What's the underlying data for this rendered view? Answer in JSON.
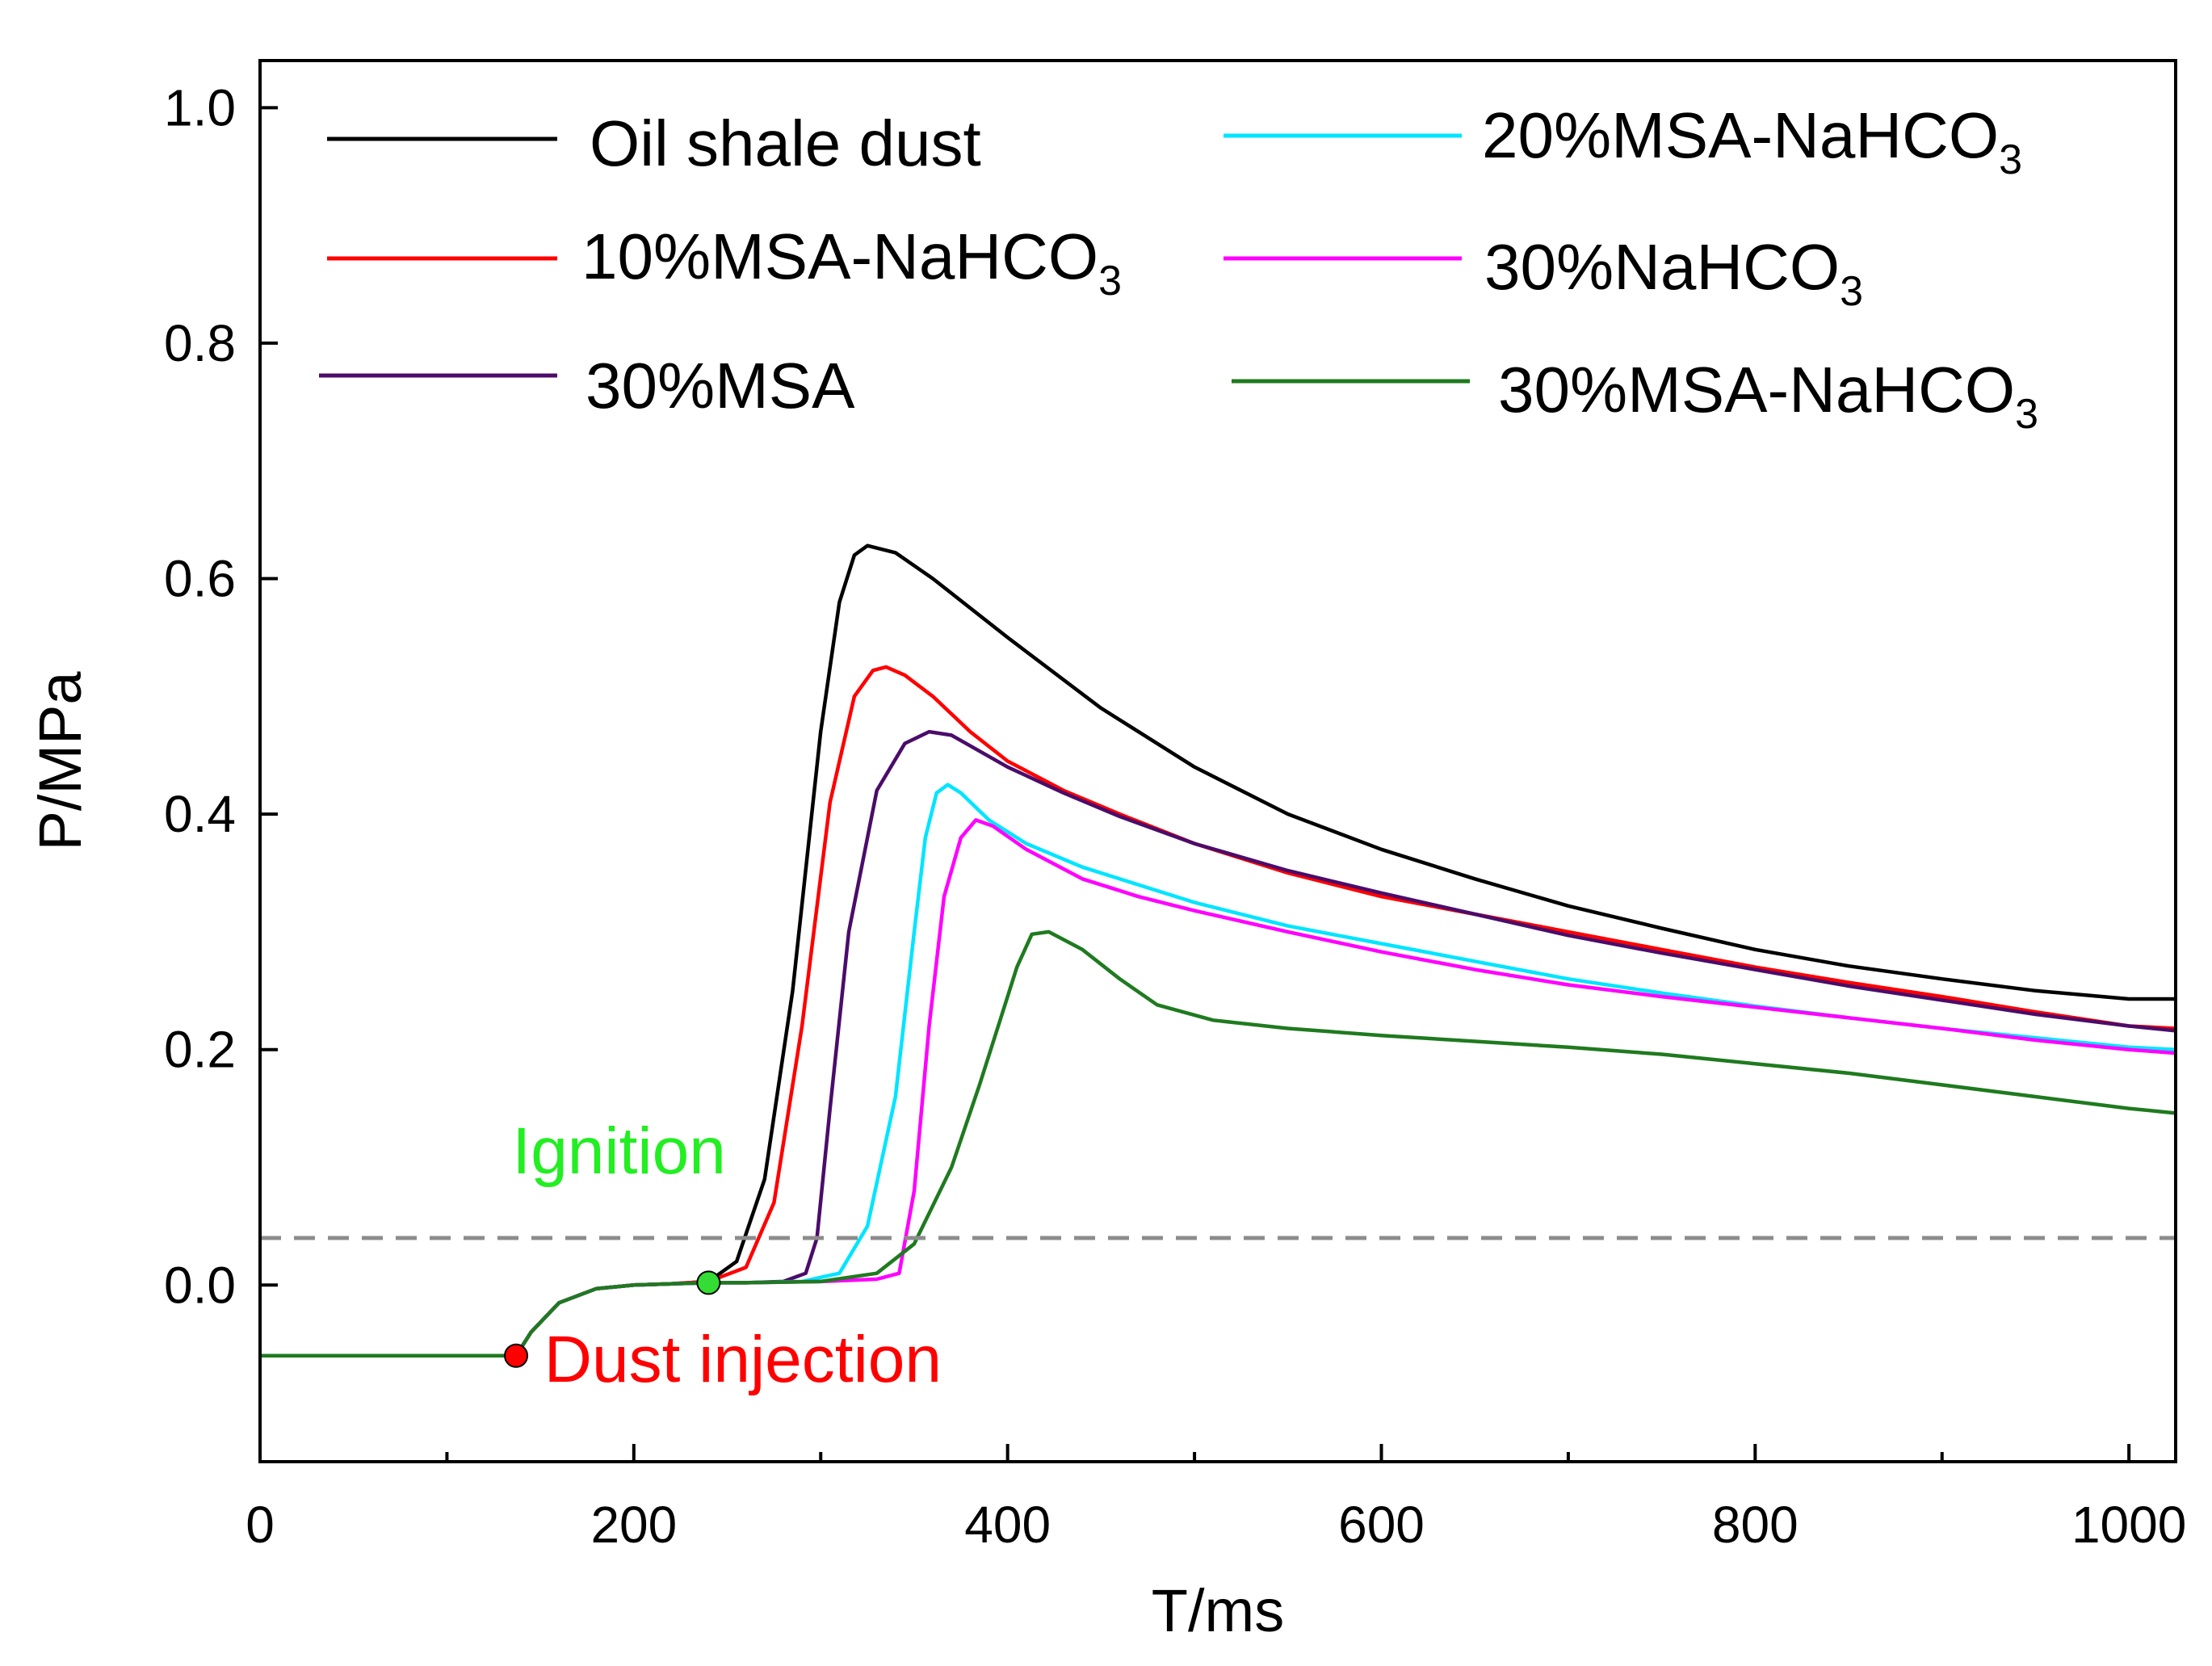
{
  "chart_data": {
    "type": "line",
    "title": "",
    "xlabel": "T/ms",
    "ylabel": "P/MPa",
    "xlim": [
      0,
      1025
    ],
    "ylim": [
      -0.15,
      1.04
    ],
    "x_ticks": [
      0,
      200,
      400,
      600,
      800,
      1000
    ],
    "x_tick_labels": [
      "0",
      "200",
      "400",
      "600",
      "800",
      "1000"
    ],
    "x_minor_ticks": [
      100,
      300,
      500,
      700,
      900
    ],
    "y_ticks": [
      0.0,
      0.2,
      0.4,
      0.6,
      0.8,
      1.0
    ],
    "y_tick_labels": [
      "0.0",
      "0.2",
      "0.4",
      "0.6",
      "0.8",
      "1.0"
    ],
    "grid": false,
    "legend_position": "top",
    "threshold_line": {
      "y": 0.04,
      "style": "dashed",
      "color": "#8c8c8c"
    },
    "series": [
      {
        "name": "Oil shale dust",
        "legend_main": "Oil shale dust",
        "legend_sub": "",
        "color": "#000000",
        "x": [
          0,
          137,
          145,
          160,
          180,
          200,
          220,
          240,
          255,
          270,
          285,
          300,
          310,
          318,
          325,
          340,
          360,
          400,
          450,
          500,
          550,
          600,
          650,
          700,
          750,
          800,
          850,
          900,
          950,
          1000,
          1025
        ],
        "y": [
          -0.06,
          -0.06,
          -0.04,
          -0.015,
          -0.003,
          0.0,
          0.001,
          0.003,
          0.02,
          0.09,
          0.25,
          0.47,
          0.58,
          0.62,
          0.628,
          0.622,
          0.6,
          0.55,
          0.49,
          0.44,
          0.4,
          0.37,
          0.345,
          0.322,
          0.303,
          0.285,
          0.271,
          0.26,
          0.25,
          0.243,
          0.243
        ]
      },
      {
        "name": "10%MSA-NaHCO3",
        "legend_main": "10%MSA-NaHCO",
        "legend_sub": "3",
        "color": "#ff0000",
        "x": [
          0,
          137,
          145,
          160,
          180,
          200,
          220,
          240,
          260,
          275,
          290,
          305,
          318,
          328,
          335,
          345,
          360,
          380,
          400,
          430,
          460,
          500,
          550,
          600,
          650,
          700,
          750,
          800,
          850,
          900,
          950,
          1000,
          1025
        ],
        "y": [
          -0.06,
          -0.06,
          -0.04,
          -0.015,
          -0.003,
          0.0,
          0.001,
          0.003,
          0.015,
          0.07,
          0.22,
          0.41,
          0.5,
          0.522,
          0.525,
          0.518,
          0.5,
          0.47,
          0.445,
          0.42,
          0.4,
          0.375,
          0.35,
          0.33,
          0.315,
          0.3,
          0.285,
          0.27,
          0.257,
          0.245,
          0.232,
          0.22,
          0.218
        ]
      },
      {
        "name": "30%MSA",
        "legend_main": "30%MSA",
        "legend_sub": "",
        "color": "#4b0c6a",
        "x": [
          0,
          137,
          145,
          160,
          180,
          200,
          220,
          240,
          260,
          280,
          292,
          298,
          305,
          315,
          330,
          345,
          358,
          370,
          400,
          430,
          460,
          500,
          550,
          600,
          650,
          700,
          750,
          800,
          850,
          900,
          950,
          1000,
          1025
        ],
        "y": [
          -0.06,
          -0.06,
          -0.04,
          -0.015,
          -0.003,
          0.0,
          0.001,
          0.002,
          0.002,
          0.003,
          0.01,
          0.04,
          0.15,
          0.3,
          0.42,
          0.46,
          0.47,
          0.467,
          0.44,
          0.418,
          0.398,
          0.375,
          0.352,
          0.333,
          0.315,
          0.297,
          0.282,
          0.268,
          0.254,
          0.242,
          0.23,
          0.22,
          0.216
        ]
      },
      {
        "name": "20%MSA-NaHCO3",
        "legend_main": "20%MSA-NaHCO",
        "legend_sub": "3",
        "color": "#00e5ff",
        "x": [
          0,
          137,
          145,
          160,
          180,
          200,
          220,
          240,
          260,
          290,
          310,
          325,
          340,
          350,
          356,
          362,
          368,
          375,
          390,
          410,
          440,
          470,
          500,
          550,
          600,
          650,
          700,
          750,
          800,
          850,
          900,
          950,
          1000,
          1025
        ],
        "y": [
          -0.06,
          -0.06,
          -0.04,
          -0.015,
          -0.003,
          0.0,
          0.001,
          0.002,
          0.002,
          0.003,
          0.01,
          0.05,
          0.16,
          0.3,
          0.38,
          0.418,
          0.425,
          0.418,
          0.395,
          0.375,
          0.355,
          0.34,
          0.325,
          0.305,
          0.29,
          0.275,
          0.26,
          0.248,
          0.237,
          0.227,
          0.218,
          0.21,
          0.202,
          0.2
        ]
      },
      {
        "name": "30%NaHCO3",
        "legend_main": "30%NaHCO",
        "legend_sub": "3",
        "color": "#ff00ff",
        "x": [
          0,
          137,
          145,
          160,
          180,
          200,
          220,
          240,
          260,
          300,
          330,
          342,
          350,
          358,
          366,
          375,
          383,
          392,
          410,
          440,
          470,
          500,
          550,
          600,
          650,
          700,
          750,
          800,
          850,
          900,
          950,
          1000,
          1025
        ],
        "y": [
          -0.06,
          -0.06,
          -0.04,
          -0.015,
          -0.003,
          0.0,
          0.001,
          0.002,
          0.002,
          0.003,
          0.005,
          0.01,
          0.08,
          0.22,
          0.33,
          0.38,
          0.395,
          0.39,
          0.37,
          0.345,
          0.33,
          0.318,
          0.3,
          0.283,
          0.268,
          0.255,
          0.245,
          0.236,
          0.227,
          0.218,
          0.208,
          0.2,
          0.197
        ]
      },
      {
        "name": "30%MSA-NaHCO3",
        "legend_main": "30%MSA-NaHCO",
        "legend_sub": "3",
        "color": "#1f7a1f",
        "x": [
          0,
          137,
          145,
          160,
          180,
          200,
          220,
          240,
          260,
          300,
          330,
          350,
          370,
          385,
          395,
          405,
          413,
          422,
          440,
          460,
          480,
          510,
          550,
          600,
          650,
          700,
          750,
          800,
          850,
          900,
          950,
          1000,
          1025
        ],
        "y": [
          -0.06,
          -0.06,
          -0.04,
          -0.015,
          -0.003,
          0.0,
          0.001,
          0.002,
          0.002,
          0.003,
          0.01,
          0.035,
          0.1,
          0.17,
          0.22,
          0.27,
          0.298,
          0.3,
          0.285,
          0.26,
          0.238,
          0.225,
          0.218,
          0.212,
          0.207,
          0.202,
          0.196,
          0.188,
          0.18,
          0.17,
          0.16,
          0.15,
          0.146
        ]
      }
    ],
    "markers": [
      {
        "name": "dust-injection",
        "x": 137,
        "y": -0.06,
        "color": "#ff0000"
      },
      {
        "name": "ignition",
        "x": 240,
        "y": 0.002,
        "color": "#33dd33"
      }
    ],
    "annotations": [
      {
        "name": "ignition-label",
        "text": "Ignition",
        "x": 135,
        "y": 0.095,
        "color": "#22ee22"
      },
      {
        "name": "dust-injection-label",
        "text": "Dust injection",
        "x": 152,
        "y": -0.082,
        "color": "#ff0000"
      }
    ]
  }
}
